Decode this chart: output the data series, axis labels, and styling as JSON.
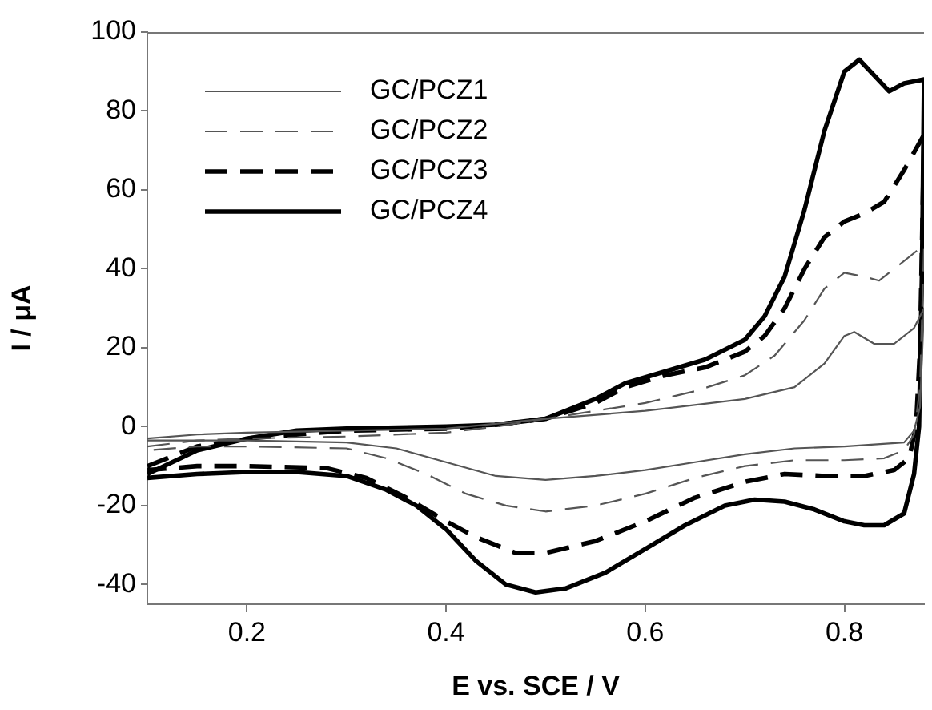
{
  "chart_data": {
    "type": "line",
    "xlabel": "E vs. SCE / V",
    "ylabel": "I / μA",
    "xlim": [
      0.1,
      0.88
    ],
    "xticks": [
      0.2,
      0.4,
      0.6,
      0.8
    ],
    "ylim": [
      -45,
      100
    ],
    "yticks": [
      -40,
      -20,
      0,
      20,
      40,
      60,
      80,
      100
    ],
    "grid": false,
    "legend": "top left",
    "marker": "none",
    "series": [
      {
        "name": "GC/PCZ1",
        "color": "#555555",
        "line_style": "solid",
        "x": [
          0.1,
          0.15,
          0.2,
          0.3,
          0.4,
          0.5,
          0.6,
          0.7,
          0.75,
          0.78,
          0.8,
          0.81,
          0.83,
          0.85,
          0.87,
          0.88,
          0.876,
          0.87,
          0.86,
          0.83,
          0.8,
          0.75,
          0.7,
          0.65,
          0.6,
          0.55,
          0.5,
          0.45,
          0.4,
          0.35,
          0.3,
          0.2,
          0.1
        ],
        "values": [
          -3,
          -2,
          -1.5,
          -1,
          -0.5,
          2,
          4,
          7,
          10,
          16,
          23,
          24,
          21,
          21,
          25,
          30,
          5,
          -1,
          -4,
          -4.5,
          -5,
          -5.5,
          -7,
          -9,
          -11,
          -12.5,
          -13.5,
          -12.5,
          -9,
          -5.5,
          -4,
          -3.5,
          -3.5
        ]
      },
      {
        "name": "GC/PCZ2",
        "color": "#555555",
        "line_style": "dashed",
        "x": [
          0.1,
          0.15,
          0.2,
          0.3,
          0.4,
          0.45,
          0.5,
          0.55,
          0.6,
          0.65,
          0.7,
          0.73,
          0.76,
          0.78,
          0.8,
          0.82,
          0.835,
          0.85,
          0.87,
          0.88,
          0.876,
          0.87,
          0.86,
          0.84,
          0.8,
          0.75,
          0.7,
          0.65,
          0.6,
          0.55,
          0.5,
          0.46,
          0.42,
          0.38,
          0.34,
          0.3,
          0.2,
          0.15,
          0.1
        ],
        "values": [
          -5,
          -3.5,
          -3,
          -2.5,
          -1.5,
          0,
          2,
          4,
          6,
          9,
          13,
          18,
          27,
          35,
          39,
          38,
          37,
          40,
          44,
          46,
          10,
          -2,
          -6,
          -8,
          -8.5,
          -8.5,
          -10,
          -13,
          -17,
          -20,
          -21.5,
          -20,
          -17,
          -12,
          -8,
          -5.5,
          -5,
          -5,
          -6
        ]
      },
      {
        "name": "GC/PCZ3",
        "color": "#000000",
        "line_style": "dashed",
        "x": [
          0.1,
          0.15,
          0.2,
          0.3,
          0.4,
          0.45,
          0.5,
          0.55,
          0.58,
          0.62,
          0.66,
          0.7,
          0.72,
          0.74,
          0.76,
          0.78,
          0.8,
          0.82,
          0.84,
          0.86,
          0.88,
          0.876,
          0.872,
          0.865,
          0.85,
          0.82,
          0.78,
          0.74,
          0.7,
          0.65,
          0.6,
          0.55,
          0.5,
          0.47,
          0.43,
          0.4,
          0.36,
          0.32,
          0.28,
          0.2,
          0.15,
          0.1
        ],
        "values": [
          -10,
          -5,
          -3,
          -1,
          -0.5,
          0.5,
          2,
          6,
          10,
          13,
          15,
          19,
          23,
          30,
          40,
          48,
          52,
          54,
          57,
          65,
          74,
          20,
          0,
          -8,
          -11,
          -12.5,
          -12.5,
          -12,
          -14,
          -18,
          -24,
          -29,
          -32,
          -32,
          -28,
          -24,
          -18,
          -13,
          -10.5,
          -10,
          -10,
          -11
        ]
      },
      {
        "name": "GC/PCZ4",
        "color": "#000000",
        "line_style": "solid",
        "x": [
          0.1,
          0.15,
          0.2,
          0.25,
          0.3,
          0.4,
          0.45,
          0.5,
          0.55,
          0.58,
          0.62,
          0.66,
          0.7,
          0.72,
          0.74,
          0.76,
          0.78,
          0.8,
          0.815,
          0.83,
          0.845,
          0.86,
          0.88,
          0.878,
          0.875,
          0.87,
          0.86,
          0.84,
          0.82,
          0.8,
          0.77,
          0.74,
          0.71,
          0.68,
          0.64,
          0.6,
          0.56,
          0.52,
          0.49,
          0.46,
          0.43,
          0.4,
          0.37,
          0.34,
          0.3,
          0.25,
          0.2,
          0.15,
          0.1
        ],
        "values": [
          -12,
          -6,
          -3,
          -1,
          -0.5,
          0,
          0.5,
          2,
          7,
          11,
          14,
          17,
          22,
          28,
          38,
          55,
          75,
          90,
          93,
          89,
          85,
          87,
          88,
          40,
          0,
          -12,
          -22,
          -25,
          -25,
          -24,
          -21,
          -19,
          -18.5,
          -20,
          -25,
          -31,
          -37,
          -41,
          -42,
          -40,
          -34,
          -26,
          -20,
          -16,
          -12.5,
          -11.5,
          -11.5,
          -12,
          -13
        ]
      }
    ]
  }
}
